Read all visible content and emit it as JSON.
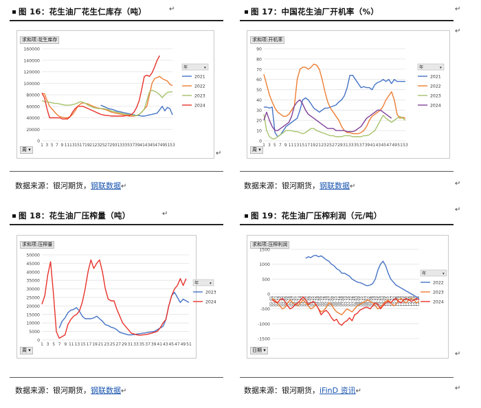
{
  "sections": [
    {
      "title": "图 16：花生油厂花生仁库存（吨）",
      "source": "数据来源：银河期货，钢联数据",
      "source_plain": "数据来源：银河期货，",
      "source_link": "钢联数据"
    },
    {
      "title": "图 17：中国花生油厂开机率（%）",
      "source": "数据来源：银河期货，钢联数据",
      "source_plain": "数据来源：银河期货，",
      "source_link": "钢联数据"
    },
    {
      "title": "图 18：花生油厂压榨量（吨）",
      "source": "数据来源：银河期货，钢联数据",
      "source_plain": "数据来源：银河期货，",
      "source_link": "钢联数据"
    },
    {
      "title": "图 19：花生油厂压榨利润（元/吨）",
      "source": "数据来源：银河期货，iFinD 资讯",
      "source_plain": "数据来源：银河期货，",
      "source_link": "iFinD 资讯"
    }
  ],
  "return_mark": "↵",
  "chart_data": [
    {
      "type": "line",
      "tag": "求和项:花生库存",
      "filter_button": "周",
      "legend_title": "年",
      "yticks": [
        "0",
        "20000",
        "40000",
        "60000",
        "80000",
        "100000",
        "120000",
        "140000",
        "160000"
      ],
      "ylim": [
        0,
        160000
      ],
      "xticks": [
        "1",
        "3",
        "5",
        "7",
        "9",
        "11",
        "13",
        "15",
        "17",
        "19",
        "21",
        "23",
        "25",
        "27",
        "29",
        "31",
        "33",
        "35",
        "37",
        "39",
        "41",
        "43",
        "45",
        "47",
        "49",
        "51",
        "53"
      ],
      "series": [
        {
          "name": "2021",
          "color": "#4472c4",
          "values": [
            null,
            null,
            null,
            null,
            null,
            null,
            null,
            null,
            null,
            null,
            null,
            null,
            null,
            null,
            null,
            null,
            null,
            null,
            null,
            null,
            null,
            null,
            null,
            62000,
            60000,
            58000,
            56000,
            55000,
            54000,
            52000,
            51000,
            50000,
            49000,
            48000,
            47000,
            46000,
            45000,
            44000,
            44000,
            43000,
            43000,
            44000,
            45000,
            46000,
            47000,
            48000,
            54000,
            60000,
            52000,
            58000,
            56000,
            45000
          ]
        },
        {
          "name": "2022",
          "color": "#ed7d31",
          "values": [
            82000,
            82000,
            70000,
            60000,
            55000,
            50000,
            45000,
            42000,
            41000,
            40000,
            40000,
            42000,
            46000,
            52000,
            60000,
            64000,
            66000,
            65000,
            64000,
            62000,
            60000,
            58000,
            57000,
            56000,
            55000,
            54000,
            52000,
            50000,
            49000,
            48000,
            47000,
            46000,
            45000,
            44000,
            43000,
            43000,
            43000,
            44000,
            46000,
            50000,
            55000,
            60000,
            80000,
            100000,
            108000,
            110000,
            112000,
            108000,
            106000,
            104000,
            98000,
            96000
          ]
        },
        {
          "name": "2023",
          "color": "#a5c26a",
          "values": [
            70000,
            68000,
            68000,
            67000,
            66000,
            65000,
            65000,
            64000,
            63000,
            62000,
            62000,
            62000,
            63000,
            64000,
            66000,
            68000,
            67000,
            65000,
            62000,
            60000,
            58000,
            57000,
            56000,
            56000,
            56000,
            55000,
            54000,
            52000,
            51000,
            50000,
            49000,
            48000,
            47000,
            46000,
            46000,
            45000,
            44000,
            44000,
            46000,
            50000,
            55000,
            70000,
            85000,
            88000,
            86000,
            84000,
            80000,
            75000,
            80000,
            84000,
            85000,
            85000
          ]
        },
        {
          "name": "2024",
          "color": "#e8312a",
          "values": [
            83000,
            75000,
            55000,
            40000,
            40000,
            40000,
            40000,
            40000,
            38000,
            38000,
            38000,
            42000,
            50000,
            56000,
            60000,
            60000,
            60000,
            58000,
            56000,
            54000,
            52000,
            50000,
            48000,
            46000,
            45000,
            44000,
            44000,
            43000,
            43000,
            43000,
            43000,
            43000,
            43000,
            44000,
            44000,
            46000,
            50000,
            58000,
            70000,
            90000,
            112000,
            114000,
            112000,
            118000,
            128000,
            140000,
            148000,
            null,
            null,
            null,
            null,
            null
          ]
        }
      ]
    },
    {
      "type": "line",
      "tag": "求和项:开机率",
      "filter_button": "周",
      "legend_title": "年",
      "yticks": [
        "0",
        "10",
        "20",
        "30",
        "40",
        "50",
        "60",
        "70",
        "80",
        "90"
      ],
      "ylim": [
        0,
        90
      ],
      "xticks": [
        "1",
        "3",
        "5",
        "7",
        "9",
        "11",
        "13",
        "15",
        "17",
        "19",
        "21",
        "23",
        "25",
        "27",
        "29",
        "31",
        "33",
        "35",
        "37",
        "39",
        "41",
        "43",
        "45",
        "47",
        "49",
        "51",
        "53"
      ],
      "series": [
        {
          "name": "2021",
          "color": "#4472c4",
          "values": [
            33,
            33,
            32,
            33,
            8,
            4,
            6,
            10,
            14,
            16,
            18,
            20,
            22,
            30,
            40,
            42,
            40,
            36,
            32,
            30,
            28,
            30,
            32,
            32,
            33,
            34,
            35,
            38,
            40,
            44,
            52,
            64,
            64,
            60,
            56,
            52,
            53,
            52,
            52,
            50,
            55,
            57,
            58,
            60,
            58,
            60,
            56,
            60,
            58,
            58,
            58,
            58
          ]
        },
        {
          "name": "2022",
          "color": "#ed7d31",
          "values": [
            65,
            55,
            45,
            38,
            32,
            28,
            26,
            24,
            24,
            26,
            30,
            34,
            60,
            70,
            72,
            72,
            70,
            72,
            75,
            74,
            70,
            60,
            48,
            38,
            32,
            28,
            24,
            20,
            14,
            10,
            8,
            8,
            7,
            7,
            7,
            8,
            10,
            14,
            20,
            24,
            26,
            28,
            30,
            34,
            40,
            44,
            48,
            40,
            26,
            22,
            23,
            22
          ]
        },
        {
          "name": "2023",
          "color": "#a5c26a",
          "values": [
            26,
            10,
            4,
            2,
            2,
            4,
            6,
            8,
            10,
            10,
            10,
            9,
            9,
            8,
            7,
            8,
            10,
            12,
            12,
            10,
            9,
            8,
            7,
            6,
            5,
            5,
            4,
            4,
            4,
            5,
            5,
            5,
            4,
            4,
            4,
            4,
            5,
            5,
            6,
            8,
            10,
            15,
            20,
            25,
            22,
            20,
            18,
            20,
            22,
            24,
            22,
            20
          ]
        },
        {
          "name": "2024",
          "color": "#7f3f98",
          "values": [
            20,
            28,
            20,
            14,
            10,
            10,
            12,
            14,
            16,
            18,
            24,
            34,
            38,
            40,
            36,
            30,
            26,
            24,
            22,
            20,
            18,
            16,
            14,
            12,
            12,
            12,
            10,
            10,
            10,
            10,
            9,
            9,
            9,
            10,
            12,
            14,
            18,
            22,
            24,
            26,
            28,
            30,
            30,
            28,
            26,
            24,
            22,
            null,
            null,
            null,
            null,
            null
          ]
        }
      ]
    },
    {
      "type": "line",
      "tag": "求和项:压榨量",
      "filter_button": "周",
      "legend_title": "年",
      "yticks": [
        "0",
        "5000",
        "10000",
        "15000",
        "20000",
        "25000",
        "30000",
        "35000",
        "40000",
        "45000",
        "50000"
      ],
      "ylim": [
        0,
        50000
      ],
      "xticks": [
        "1",
        "3",
        "5",
        "7",
        "9",
        "11",
        "13",
        "15",
        "17",
        "19",
        "21",
        "23",
        "25",
        "27",
        "29",
        "31",
        "33",
        "35",
        "37",
        "39",
        "41",
        "43",
        "45",
        "47",
        "49",
        "51"
      ],
      "series": [
        {
          "name": "2023",
          "color": "#4472c4",
          "values": [
            null,
            null,
            null,
            null,
            null,
            null,
            7000,
            11000,
            13000,
            16000,
            17500,
            18000,
            19000,
            17000,
            14000,
            12500,
            12500,
            12500,
            13000,
            14000,
            12500,
            11000,
            9000,
            8500,
            7500,
            7000,
            6000,
            4500,
            4000,
            3500,
            3000,
            3000,
            3200,
            3500,
            3700,
            4000,
            4200,
            4500,
            4800,
            5000,
            6000,
            7000,
            8000,
            12000,
            20000,
            26000,
            28000,
            25000,
            22000,
            24000,
            23000,
            22000
          ]
        },
        {
          "name": "2024",
          "color": "#e8312a",
          "values": [
            21000,
            26000,
            38000,
            46000,
            27000,
            5000,
            1000,
            2000,
            3000,
            9000,
            12000,
            14000,
            15000,
            17000,
            22000,
            30000,
            40000,
            47000,
            42000,
            45000,
            47000,
            40000,
            30000,
            24000,
            23000,
            23000,
            18000,
            14000,
            10000,
            8000,
            6000,
            4000,
            3500,
            3000,
            2800,
            3000,
            3200,
            3500,
            4000,
            4500,
            5000,
            7000,
            10000,
            12000,
            20000,
            26000,
            30000,
            32000,
            36000,
            32000,
            36000,
            null
          ]
        }
      ]
    },
    {
      "type": "line",
      "tag": "求和项:压榨利润",
      "filter_button": "日期",
      "legend_title": "年",
      "yticks": [
        "-1500",
        "-1000",
        "-500",
        "0",
        "500",
        "1000",
        "1500"
      ],
      "ylim": [
        -1500,
        1500
      ],
      "xticks": [
        "01-01",
        "01-07",
        "01-13",
        "01-19",
        "01-25",
        "02-02",
        "02-09",
        "02-18",
        "02-24",
        "03-01",
        "03-07",
        "03-14",
        "03-20",
        "03-26",
        "04-02",
        "04-09",
        "04-15",
        "04-22",
        "04-28",
        "05-06",
        "05-12",
        "05-18",
        "05-24",
        "06-01",
        "06-09",
        "06-15",
        "06-21",
        "06-28",
        "07-04",
        "07-10",
        "07-16",
        "07-22",
        "07-28",
        "08-03",
        "08-09",
        "08-15",
        "08-21",
        "08-27",
        "09-02",
        "09-08",
        "09-14",
        "09-20",
        "09-26",
        "10-03",
        "10-09",
        "10-15",
        "10-21",
        "10-27",
        "11-02",
        "11-08",
        "11-14",
        "11-20",
        "11-26",
        "12-02",
        "12-08",
        "12-14",
        "12-20",
        "12-26"
      ],
      "series": [
        {
          "name": "2022",
          "color": "#4472c4",
          "values": [
            null,
            null,
            null,
            null,
            null,
            null,
            null,
            null,
            null,
            null,
            null,
            null,
            null,
            1200,
            1250,
            1220,
            1280,
            1300,
            1250,
            1280,
            1220,
            1150,
            1100,
            1000,
            950,
            850,
            800,
            700,
            700,
            650,
            600,
            500,
            450,
            400,
            380,
            350,
            300,
            280,
            300,
            350,
            500,
            800,
            1000,
            1100,
            950,
            700,
            500,
            400,
            300,
            250,
            200,
            150,
            100,
            50,
            0,
            -50,
            -100,
            -150
          ]
        },
        {
          "name": "2023",
          "color": "#ed7d31",
          "values": [
            -150,
            -200,
            -300,
            -400,
            -500,
            -450,
            -300,
            -200,
            -300,
            -350,
            -400,
            -300,
            -200,
            -300,
            -400,
            -500,
            -450,
            -350,
            -500,
            -600,
            -550,
            -450,
            -300,
            -350,
            -500,
            -600,
            -650,
            -700,
            -600,
            -500,
            -550,
            -600,
            -500,
            -400,
            -350,
            -300,
            -250,
            -200,
            -250,
            -300,
            -400,
            -500,
            -450,
            -350,
            -250,
            -200,
            -300,
            -400,
            -350,
            -200,
            -150,
            -250,
            -300,
            -200,
            -150,
            -200,
            -300,
            -250
          ]
        },
        {
          "name": "2024",
          "color": "#e8312a",
          "values": [
            -200,
            -250,
            -300,
            -200,
            -150,
            -250,
            -400,
            -500,
            -450,
            -350,
            -300,
            -200,
            -100,
            -200,
            -350,
            -300,
            -250,
            -350,
            -500,
            -700,
            -600,
            -550,
            -650,
            -800,
            -900,
            -850,
            -1000,
            -1050,
            -950,
            -900,
            -800,
            -900,
            -700,
            -650,
            -550,
            -500,
            -450,
            -450,
            -500,
            -400,
            -300,
            -350,
            -500,
            -400,
            -300,
            -250,
            -300,
            -200,
            -150,
            -250,
            -300,
            -200,
            -150,
            -200,
            -250,
            -200,
            -150,
            -200
          ]
        }
      ]
    }
  ]
}
